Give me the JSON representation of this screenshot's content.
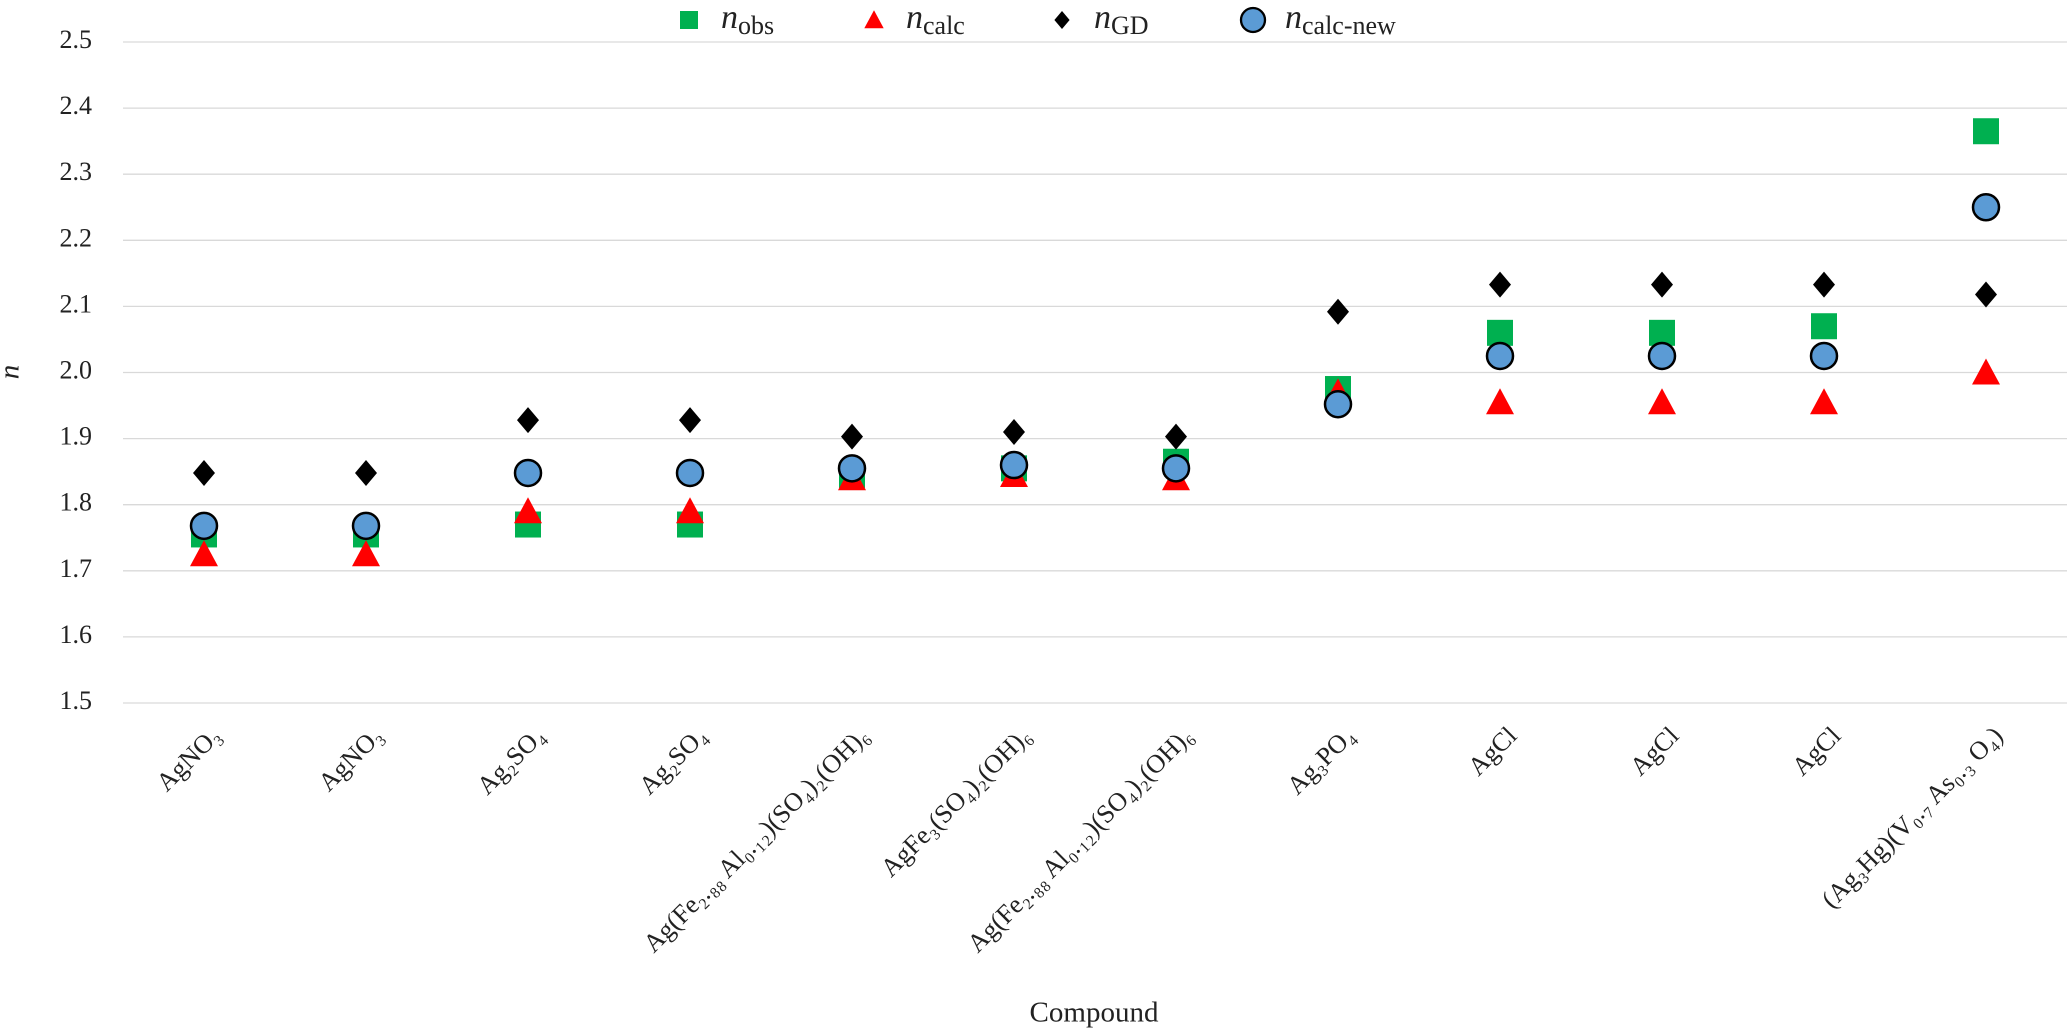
{
  "chart_data": {
    "type": "scatter",
    "x_label": "Compound",
    "y_label": "n",
    "categories": [
      "AgNO₃",
      "AgNO₃",
      "Ag₂SO₄",
      "Ag₂SO₄",
      "Ag(Fe₂.₈₈ Al₀.₁₂)(SO₄)₂(OH)₆",
      "AgFe₃(SO₄)₂(OH)₆",
      "Ag(Fe₂.₈₈ Al₀.₁₂)(SO₄)₂(OH)₆",
      "Ag₃PO₄",
      "AgCl",
      "AgCl",
      "AgCl",
      "(Ag₃Hg)(V₀.₇ As₀.₃ O₄)"
    ],
    "series": [
      {
        "name": "nobs",
        "color": "#00b050",
        "marker": "square",
        "values": [
          1.755,
          1.755,
          1.77,
          1.77,
          1.845,
          1.855,
          1.865,
          1.975,
          2.06,
          2.06,
          2.07,
          2.365
        ]
      },
      {
        "name": "ncalc",
        "color": "#ff0000",
        "marker": "triangle",
        "values": [
          1.725,
          1.725,
          1.79,
          1.79,
          1.84,
          1.845,
          1.84,
          1.97,
          1.955,
          1.955,
          1.955,
          2.0
        ]
      },
      {
        "name": "nGD",
        "color": "#000000",
        "marker": "diamond",
        "values": [
          1.848,
          1.848,
          1.928,
          1.928,
          1.903,
          1.91,
          1.903,
          2.092,
          2.133,
          2.133,
          2.133,
          2.118
        ]
      },
      {
        "name": "ncalc-new",
        "color": "#5b9bd5",
        "marker": "circle",
        "values": [
          1.768,
          1.768,
          1.848,
          1.848,
          1.855,
          1.86,
          1.855,
          1.952,
          2.025,
          2.025,
          2.025,
          2.25
        ]
      }
    ],
    "ylim": [
      1.5,
      2.5
    ],
    "yticks": [
      1.5,
      1.6,
      1.7,
      1.8,
      1.9,
      {
        "value": 2,
        "label": "2.0"
      },
      2.1,
      2.2,
      2.3,
      2.4,
      2.5
    ],
    "grid": true,
    "legend": "top"
  }
}
